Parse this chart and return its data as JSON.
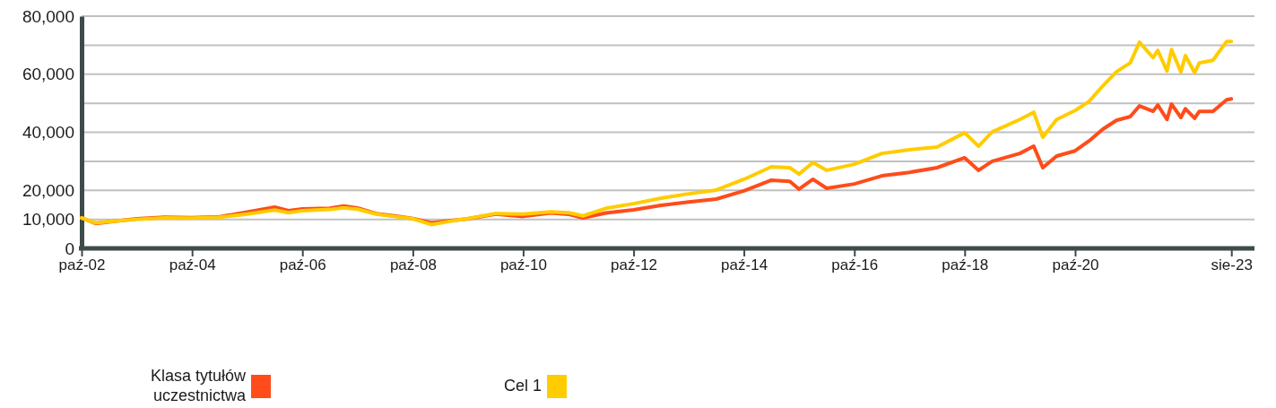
{
  "chart_data": {
    "type": "line",
    "x": [
      "2002-10",
      "2003-01",
      "2003-06",
      "2003-10",
      "2004-04",
      "2004-10",
      "2005-04",
      "2005-10",
      "2006-04",
      "2006-07",
      "2006-10",
      "2007-04",
      "2007-07",
      "2007-10",
      "2008-02",
      "2008-06",
      "2008-10",
      "2009-02",
      "2009-06",
      "2009-10",
      "2010-04",
      "2010-10",
      "2011-04",
      "2011-08",
      "2011-11",
      "2012-04",
      "2012-10",
      "2013-04",
      "2013-10",
      "2014-04",
      "2014-10",
      "2015-04",
      "2015-08",
      "2015-10",
      "2016-01",
      "2016-04",
      "2016-10",
      "2017-04",
      "2017-10",
      "2018-04",
      "2018-10",
      "2019-01",
      "2019-04",
      "2019-10",
      "2020-01",
      "2020-03",
      "2020-06",
      "2020-10",
      "2021-01",
      "2021-04",
      "2021-07",
      "2021-10",
      "2021-12",
      "2022-03",
      "2022-04",
      "2022-06",
      "2022-07",
      "2022-09",
      "2022-10",
      "2022-12",
      "2023-01",
      "2023-04",
      "2023-07",
      "2023-08"
    ],
    "series": [
      {
        "name": "Klasa tytułów uczestnictwa",
        "color": "#ff4c1a",
        "values": [
          10500,
          8600,
          9500,
          10200,
          10700,
          10600,
          10900,
          12500,
          14200,
          13000,
          13600,
          13800,
          14600,
          13900,
          12000,
          11200,
          10300,
          8800,
          9500,
          10200,
          11800,
          11000,
          12200,
          11700,
          10500,
          12200,
          13300,
          14800,
          16000,
          17000,
          19800,
          23500,
          23100,
          20400,
          23800,
          20700,
          22200,
          25000,
          26200,
          27800,
          31200,
          26900,
          30000,
          32700,
          35200,
          27800,
          31800,
          33600,
          37000,
          41000,
          44100,
          45400,
          49100,
          47200,
          49400,
          44400,
          49700,
          45100,
          48100,
          44800,
          47200,
          47200,
          51200,
          51500
        ]
      },
      {
        "name": "Cel 1",
        "color": "#ffcc00",
        "values": [
          10500,
          8800,
          9500,
          10000,
          10500,
          10400,
          10700,
          11800,
          13200,
          12300,
          13000,
          13400,
          14000,
          13500,
          11800,
          11000,
          10200,
          8200,
          9300,
          10300,
          12000,
          11800,
          12600,
          12300,
          11200,
          13800,
          15400,
          17300,
          18800,
          20100,
          23800,
          28100,
          27800,
          25600,
          29600,
          26900,
          29000,
          32700,
          34000,
          34900,
          39800,
          35200,
          40100,
          44400,
          46900,
          38300,
          44400,
          47500,
          50600,
          55900,
          60800,
          63900,
          71000,
          65700,
          68200,
          61100,
          68500,
          60800,
          66400,
          60500,
          63900,
          64800,
          71300,
          71300
        ]
      }
    ],
    "xlim": [
      "2002-10",
      "2024-01"
    ],
    "xticks": [
      {
        "value": "2002-10",
        "label": "paź-02"
      },
      {
        "value": "2004-10",
        "label": "paź-04"
      },
      {
        "value": "2006-10",
        "label": "paź-06"
      },
      {
        "value": "2008-10",
        "label": "paź-08"
      },
      {
        "value": "2010-10",
        "label": "paź-10"
      },
      {
        "value": "2012-10",
        "label": "paź-12"
      },
      {
        "value": "2014-10",
        "label": "paź-14"
      },
      {
        "value": "2016-10",
        "label": "paź-16"
      },
      {
        "value": "2018-10",
        "label": "paź-18"
      },
      {
        "value": "2020-10",
        "label": "paź-20"
      },
      {
        "value": "2023-08",
        "label": "sie-23"
      }
    ],
    "ylim": [
      0,
      80000
    ],
    "yticks": [
      {
        "value": 0,
        "label": "0"
      },
      {
        "value": 10000,
        "label": "10,000"
      },
      {
        "value": 20000,
        "label": "20,000"
      },
      {
        "value": 30000,
        "label": null
      },
      {
        "value": 40000,
        "label": "40,000"
      },
      {
        "value": 50000,
        "label": null
      },
      {
        "value": 60000,
        "label": "60,000"
      },
      {
        "value": 70000,
        "label": null
      },
      {
        "value": 80000,
        "label": "80,000"
      }
    ],
    "grid": "y",
    "legend": "bottom",
    "line_style": "solid",
    "marker": "none"
  }
}
